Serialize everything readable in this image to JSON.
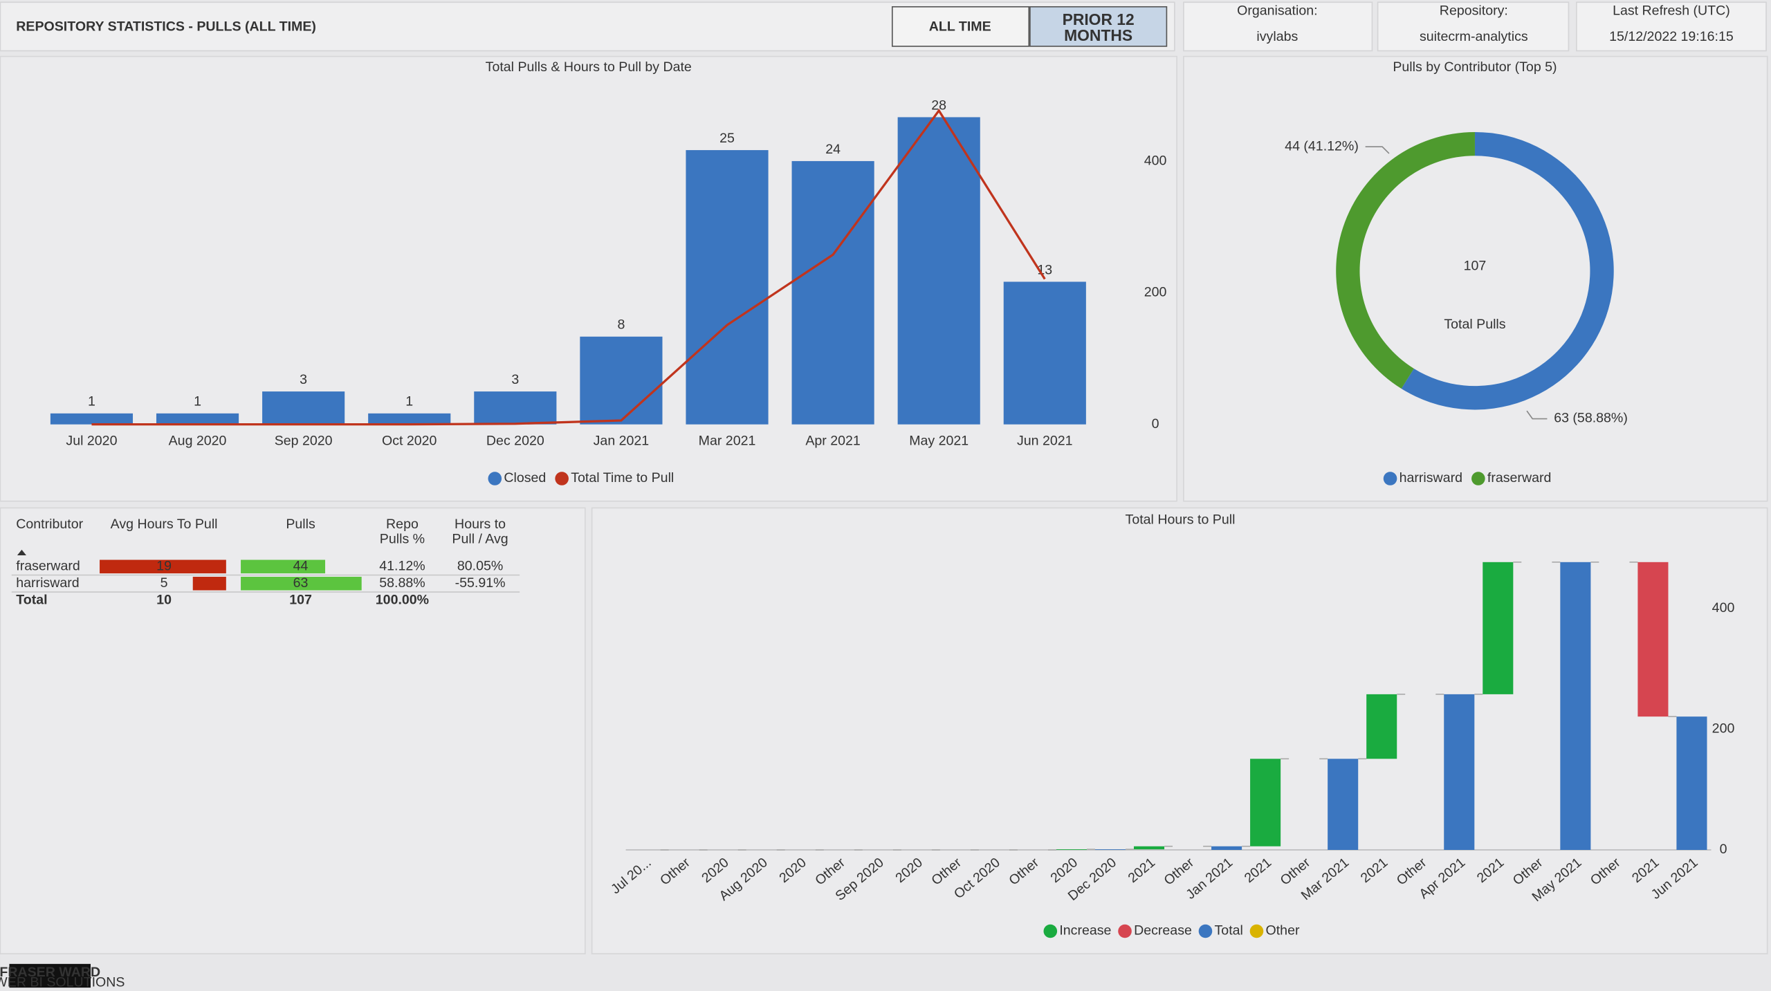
{
  "header": {
    "title": "REPOSITORY STATISTICS - PULLS (ALL TIME)",
    "buttons": [
      "ALL TIME",
      "PRIOR 12 MONTHS"
    ],
    "cards": [
      {
        "label": "Organisation:",
        "value": "ivylabs"
      },
      {
        "label": "Repository:",
        "value": "suitecrm-analytics"
      },
      {
        "label": "Last Refresh (UTC)",
        "value": "15/12/2022 19:16:15"
      }
    ]
  },
  "chart_data": [
    {
      "type": "combo",
      "title": "Total Pulls & Hours to Pull by Date",
      "categories": [
        "Jul 2020",
        "Aug 2020",
        "Sep 2020",
        "Oct 2020",
        "Dec 2020",
        "Jan 2021",
        "Mar 2021",
        "Apr 2021",
        "May 2021",
        "Jun 2021"
      ],
      "series": [
        {
          "name": "Closed",
          "type": "bar",
          "color": "#3b76c0",
          "values": [
            1,
            1,
            3,
            1,
            3,
            8,
            25,
            24,
            28,
            13
          ]
        },
        {
          "name": "Total Time to Pull",
          "type": "line",
          "axis": "y2",
          "color": "#c0341d",
          "values": [
            0,
            0,
            0,
            0,
            1,
            6,
            151,
            258,
            477,
            221
          ]
        }
      ],
      "ylim": [
        0,
        28.6
      ],
      "y2lim": [
        0,
        477
      ],
      "y2ticks": [
        0,
        200,
        400
      ]
    },
    {
      "type": "donut",
      "title": "Pulls by Contributor (Top 5)",
      "categories": [
        "harrisward",
        "fraserward"
      ],
      "values": [
        63,
        44
      ],
      "value_labels": [
        "63 (58.88%)",
        "44 (41.12%)"
      ],
      "colors": [
        "#3b76c0",
        "#4e9a2e"
      ],
      "center_value": 107,
      "center_label": "Total Pulls"
    },
    {
      "type": "waterfall",
      "title": "Total Hours to Pull",
      "categories": [
        "Jul 20...",
        "Other",
        "2020",
        "Aug 2020",
        "2020",
        "Other",
        "Sep 2020",
        "2020",
        "Other",
        "Oct 2020",
        "Other",
        "2020",
        "Dec 2020",
        "2021",
        "Other",
        "Jan 2021",
        "2021",
        "Other",
        "Mar 2021",
        "2021",
        "Other",
        "Apr 2021",
        "2021",
        "Other",
        "May 2021",
        "Other",
        "2021",
        "Jun 2021"
      ],
      "series": [
        {
          "name": "Increase",
          "color": "#1aab40",
          "values": [
            null,
            null,
            0,
            null,
            0,
            null,
            null,
            0,
            null,
            null,
            null,
            1,
            null,
            5,
            null,
            null,
            145,
            null,
            null,
            107,
            null,
            null,
            219,
            null,
            null,
            null,
            null,
            null
          ]
        },
        {
          "name": "Decrease",
          "color": "#d64550",
          "values": [
            null,
            null,
            null,
            null,
            null,
            null,
            null,
            null,
            null,
            null,
            null,
            null,
            null,
            null,
            null,
            null,
            null,
            null,
            null,
            null,
            null,
            null,
            null,
            null,
            null,
            null,
            -256,
            null
          ]
        },
        {
          "name": "Total",
          "color": "#3b76c0",
          "values": [
            0,
            null,
            null,
            0,
            null,
            null,
            0,
            null,
            null,
            0,
            null,
            null,
            1,
            null,
            null,
            6,
            null,
            null,
            151,
            null,
            null,
            258,
            null,
            null,
            477,
            null,
            null,
            221
          ]
        },
        {
          "name": "Other",
          "color": "#d9b300",
          "values": [
            null,
            0,
            null,
            null,
            null,
            0,
            null,
            null,
            0,
            null,
            0,
            null,
            null,
            null,
            0,
            null,
            null,
            0,
            null,
            null,
            0,
            null,
            null,
            0,
            null,
            0,
            null,
            null
          ]
        }
      ],
      "ylim": [
        0,
        492
      ],
      "yticks": [
        0,
        200,
        400
      ]
    }
  ],
  "table": {
    "headers": [
      [
        "Contributor"
      ],
      [
        "Avg Hours To Pull"
      ],
      [
        "Pulls"
      ],
      [
        "Repo",
        "Pulls %"
      ],
      [
        "Hours to",
        "Pull / Avg"
      ]
    ],
    "rows": [
      [
        "fraserward",
        19,
        44,
        "41.12%",
        "80.05%"
      ],
      [
        "harrisward",
        5,
        63,
        "58.88%",
        "-55.91%"
      ]
    ],
    "total": [
      "Total",
      10,
      107,
      "100.00%"
    ]
  },
  "footer": {
    "logo": "FRASER WARD",
    "logo_subtitle": "POWER BI SOLUTIONS"
  }
}
